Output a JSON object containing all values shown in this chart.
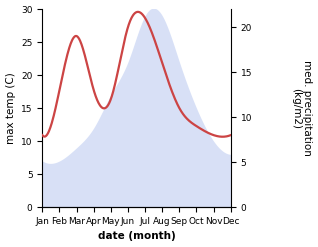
{
  "months": [
    "Jan",
    "Feb",
    "Mar",
    "Apr",
    "May",
    "Jun",
    "Jul",
    "Aug",
    "Sep",
    "Oct",
    "Nov",
    "Dec"
  ],
  "month_positions": [
    0,
    1,
    2,
    3,
    4,
    5,
    6,
    7,
    8,
    9,
    10,
    11
  ],
  "temperature": [
    7,
    7,
    9,
    12,
    17,
    22,
    29,
    29,
    22,
    15,
    10,
    8
  ],
  "precipitation": [
    8,
    13,
    19,
    13,
    12,
    20,
    21,
    16,
    11,
    9,
    8,
    8
  ],
  "temp_fill_color": "#b8c8f0",
  "precip_color": "#cc4444",
  "temp_ylim": [
    0,
    30
  ],
  "precip_ylim": [
    0,
    22
  ],
  "temp_yticks": [
    0,
    5,
    10,
    15,
    20,
    25,
    30
  ],
  "precip_yticks": [
    0,
    5,
    10,
    15,
    20
  ],
  "xlabel": "date (month)",
  "ylabel_left": "max temp (C)",
  "ylabel_right": "med. precipitation\n(kg/m2)",
  "axis_fontsize": 7.5,
  "tick_fontsize": 6.5,
  "background_color": "#ffffff",
  "fill_alpha": 0.55,
  "line_width": 1.6
}
